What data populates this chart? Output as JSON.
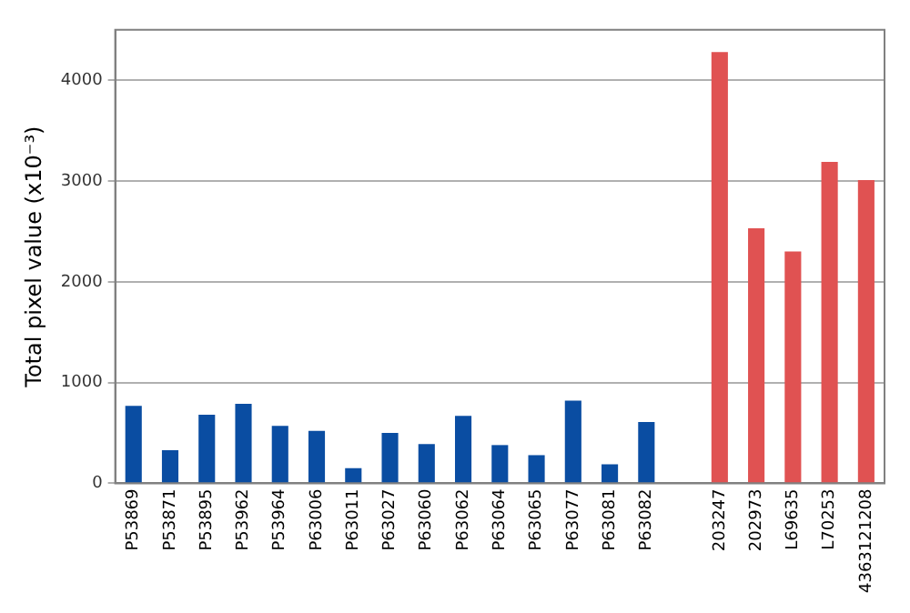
{
  "chart_data": {
    "type": "bar",
    "ylabel": "Total pixel value (x10⁻³)",
    "categories": [
      "P53869",
      "P53871",
      "P53895",
      "P53962",
      "P53964",
      "P63006",
      "P63011",
      "P63027",
      "P63060",
      "P63062",
      "P63064",
      "P63065",
      "P63077",
      "P63081",
      "P63082",
      null,
      "203247",
      "202973",
      "L69635",
      "L70253",
      "4363121208"
    ],
    "values": [
      770,
      330,
      680,
      790,
      570,
      520,
      150,
      500,
      390,
      670,
      380,
      280,
      820,
      190,
      610,
      null,
      4280,
      2530,
      2300,
      3190,
      3010
    ],
    "colors": [
      "#0a4da2",
      "#0a4da2",
      "#0a4da2",
      "#0a4da2",
      "#0a4da2",
      "#0a4da2",
      "#0a4da2",
      "#0a4da2",
      "#0a4da2",
      "#0a4da2",
      "#0a4da2",
      "#0a4da2",
      "#0a4da2",
      "#0a4da2",
      "#0a4da2",
      "#0a4da2",
      "#e05252",
      "#e05252",
      "#e05252",
      "#e05252",
      "#e05252"
    ],
    "ylim": [
      0,
      4500
    ],
    "yticks": [
      0,
      1000,
      2000,
      3000,
      4000
    ],
    "grid": "y",
    "legend": false
  }
}
